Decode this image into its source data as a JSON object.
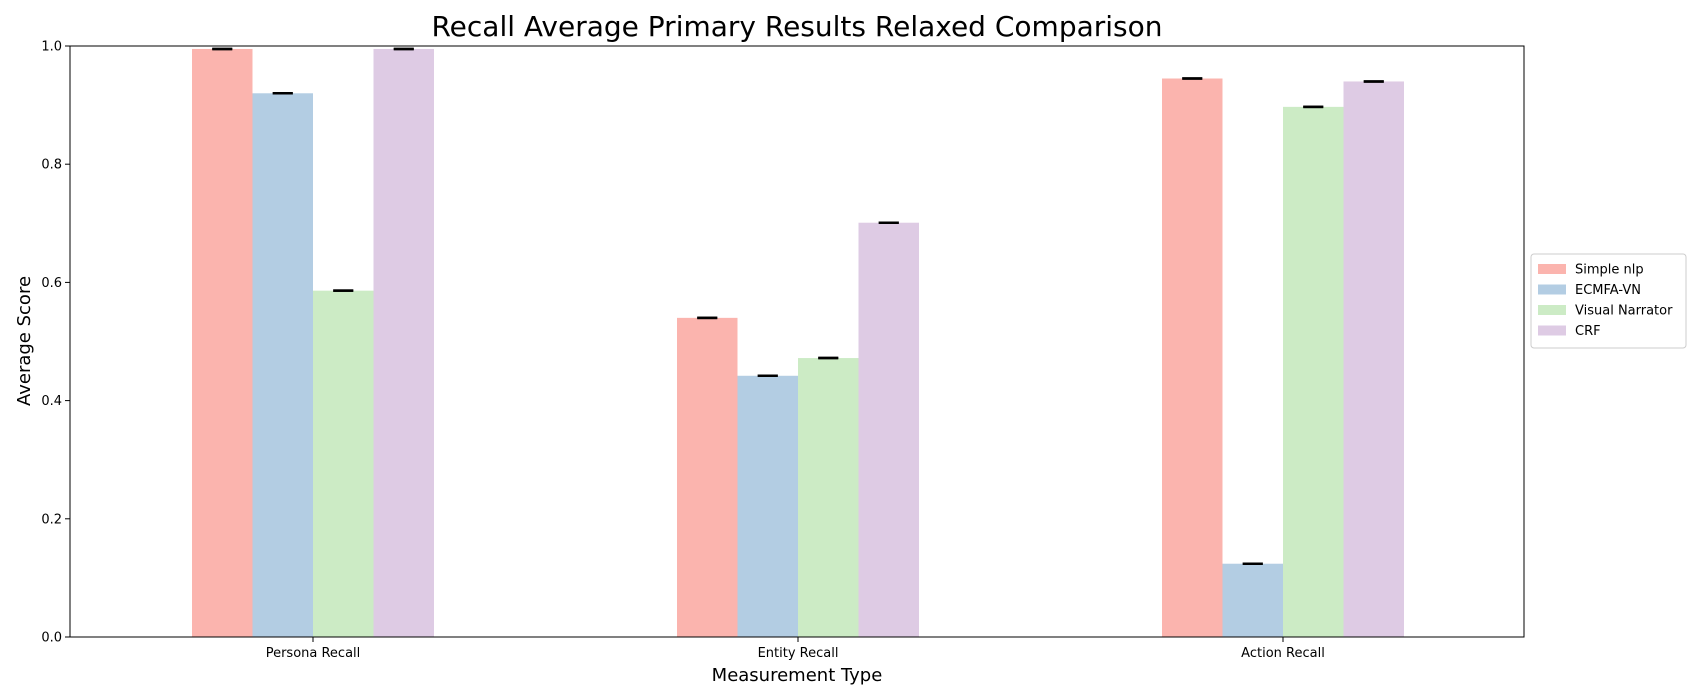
{
  "chart_data": {
    "type": "bar",
    "title": "Recall Average Primary Results Relaxed Comparison",
    "xlabel": "Measurement Type",
    "ylabel": "Average Score",
    "categories": [
      "Persona Recall",
      "Entity Recall",
      "Action Recall"
    ],
    "ylim": [
      0,
      1.0
    ],
    "yticks": [
      "0.0",
      "0.2",
      "0.4",
      "0.6",
      "0.8",
      "1.0"
    ],
    "grid": false,
    "legend_position": "center-right-outside",
    "error_bars": true,
    "series": [
      {
        "name": "Simple nlp",
        "color": "#fbb4ae",
        "values": [
          0.995,
          0.54,
          0.945
        ],
        "errors": [
          0.0,
          0.0,
          0.0
        ]
      },
      {
        "name": "ECMFA-VN",
        "color": "#b3cde3",
        "values": [
          0.92,
          0.442,
          0.124
        ],
        "errors": [
          0.0,
          0.0,
          0.0
        ]
      },
      {
        "name": "Visual Narrator",
        "color": "#ccebc5",
        "values": [
          0.586,
          0.472,
          0.897
        ],
        "errors": [
          0.0,
          0.0,
          0.0
        ]
      },
      {
        "name": "CRF",
        "color": "#decbe4",
        "values": [
          0.995,
          0.701,
          0.94
        ],
        "errors": [
          0.0,
          0.0,
          0.0
        ]
      }
    ]
  }
}
